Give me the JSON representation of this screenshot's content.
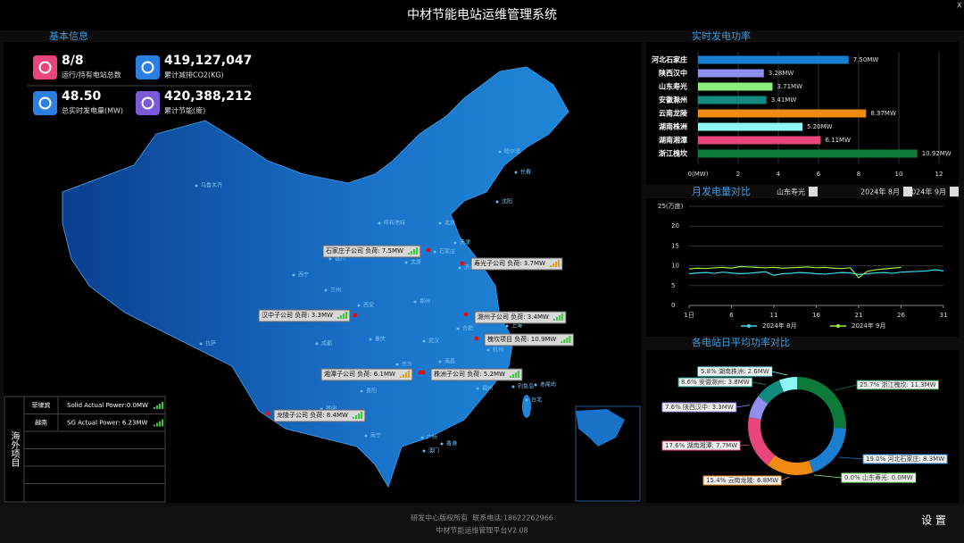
{
  "header": {
    "title": "中材节能电站运维管理系统"
  },
  "basic_info": {
    "title": "基本信息",
    "stats": [
      {
        "value": "8/8",
        "label": "运行/持有电站总数"
      },
      {
        "value": "419,127,047",
        "label": "累计减排CO2(KG)"
      },
      {
        "value": "48.50",
        "label": "总实时发电量(MW)"
      },
      {
        "value": "420,388,212",
        "label": "累计节能(度)"
      }
    ],
    "stations": [
      "石家庄子公司 负荷: 7.5MW",
      "寿光子公司 负荷: 3.7MW",
      "汉中子公司 负荷: 3.3MW",
      "滁州子公司 负荷: 3.4MW",
      "槐坎项目 负荷: 10.9MW",
      "湘潭子公司 负荷: 6.1MW",
      "株洲子公司 负荷: 5.2MW",
      "龙陵子公司 负荷: 8.4MW"
    ],
    "cities": [
      "乌鲁木齐",
      "哈尔滨",
      "长春",
      "沈阳",
      "呼和浩特",
      "北京",
      "天津",
      "石家庄",
      "太原",
      "济南",
      "银川",
      "西宁",
      "兰州",
      "西安",
      "郑州",
      "合肥",
      "南京",
      "上海",
      "拉萨",
      "成都",
      "重庆",
      "武汉",
      "杭州",
      "长沙",
      "南昌",
      "福州",
      "贵阳",
      "昆明",
      "南宁",
      "广州",
      "香港",
      "澳门",
      "台北",
      "钓鱼岛",
      "赤尾屿"
    ]
  },
  "overseas": {
    "title": "海外项目",
    "rows": [
      [
        "菲律宾",
        "Solid Actual Power:0.0MW"
      ],
      [
        "越南",
        "SG Actual Power: 6.23MW"
      ]
    ]
  },
  "chart_data": [
    {
      "type": "hbar",
      "title": "实时发电功率",
      "categories": [
        "河北石家庄",
        "陕西汉中",
        "山东寿光",
        "安徽滁州",
        "云南龙陵",
        "湖南株洲",
        "湖南湘潭",
        "浙江槐坎"
      ],
      "values": [
        7.5,
        3.28,
        3.71,
        3.41,
        8.37,
        5.2,
        6.11,
        10.92
      ],
      "value_labels": [
        "7.50MW",
        "3.28MW",
        "3.71MW",
        "3.41MW",
        "8.37MW",
        "5.20MW",
        "6.11MW",
        "10.92MW"
      ],
      "colors": [
        "#1a7fd0",
        "#8f8ff0",
        "#8af07a",
        "#138a7e",
        "#f08a10",
        "#8ef5f5",
        "#e8457a",
        "#0e7a3a"
      ],
      "xlim": [
        0,
        12
      ],
      "xticks": [
        {
          "value": 0,
          "label": "0(MW)"
        },
        2,
        4,
        6,
        8,
        10,
        12
      ],
      "grid": true
    },
    {
      "type": "line",
      "title": "月发电量对比",
      "controls": [
        "山东寿光",
        "2024年 8月",
        "2024年 9月"
      ],
      "x": [
        1,
        2,
        3,
        4,
        5,
        6,
        7,
        8,
        9,
        10,
        11,
        12,
        13,
        14,
        15,
        16,
        17,
        18,
        19,
        20,
        21,
        22,
        23,
        24,
        25,
        26,
        27,
        28,
        29,
        30,
        31
      ],
      "series": [
        {
          "name": "2024年 8月",
          "color": "#3fd8ee",
          "values": [
            8.0,
            8.2,
            8.3,
            8.1,
            8.4,
            8.2,
            8.0,
            8.1,
            8.3,
            8.5,
            7.6,
            8.0,
            8.1,
            8.3,
            8.2,
            8.0,
            7.9,
            8.1,
            8.3,
            8.2,
            7.8,
            8.0,
            8.2,
            8.3,
            8.1,
            8.4,
            8.5,
            8.6,
            8.7,
            9.0,
            8.7
          ]
        },
        {
          "name": "2024年 9月",
          "color": "#9cef3a",
          "values": [
            9.2,
            9.4,
            9.3,
            9.5,
            9.6,
            9.4,
            9.8,
            9.7,
            9.6,
            9.5,
            9.6,
            9.4,
            9.5,
            9.6,
            9.7,
            9.5,
            9.6,
            9.4,
            9.3,
            9.5,
            7.0,
            8.6,
            9.0,
            9.2,
            9.4,
            9.6,
            null,
            null,
            null,
            null,
            null
          ]
        }
      ],
      "xlim": [
        1,
        31
      ],
      "xticks": [
        {
          "value": 1,
          "label": "1日"
        },
        6,
        11,
        16,
        21,
        26,
        31
      ],
      "ylim": [
        0,
        25
      ],
      "yticks": [
        0,
        5,
        10,
        15,
        20,
        {
          "value": 25,
          "label": "25(万度)"
        }
      ],
      "grid": true
    },
    {
      "type": "donut",
      "title": "各电站日平均功率对比",
      "categories": [
        "浙江槐坎",
        "河北石家庄",
        "山东寿光",
        "云南龙陵",
        "湖南湘潭",
        "陕西汉中",
        "安徽滁州",
        "湖南株洲"
      ],
      "values": [
        11.3,
        8.3,
        0.0,
        6.8,
        7.7,
        3.3,
        3.8,
        2.6
      ],
      "value_labels": [
        "25.7% 浙江槐坎: 11.3MW",
        "19.0% 河北石家庄: 8.3MW",
        "0.0% 山东寿光: 0.0MW",
        "15.4% 云南龙陵: 6.8MW",
        "17.6% 湖南湘潭: 7.7MW",
        "7.6% 陕西汉中: 3.3MW",
        "8.6% 安徽滁州: 3.8MW",
        "5.8% 湖南株洲: 2.6MW"
      ],
      "colors": [
        "#0e7a3a",
        "#1a7fd0",
        "#8af07a",
        "#f08a10",
        "#e8457a",
        "#8f8ff0",
        "#138a7e",
        "#8ef5f5"
      ]
    }
  ],
  "footer": {
    "copyright": "研发中心版权所有  联系电话:18622262966",
    "version": "中材节能运维管理平台V2.08",
    "settings": "设 置"
  }
}
